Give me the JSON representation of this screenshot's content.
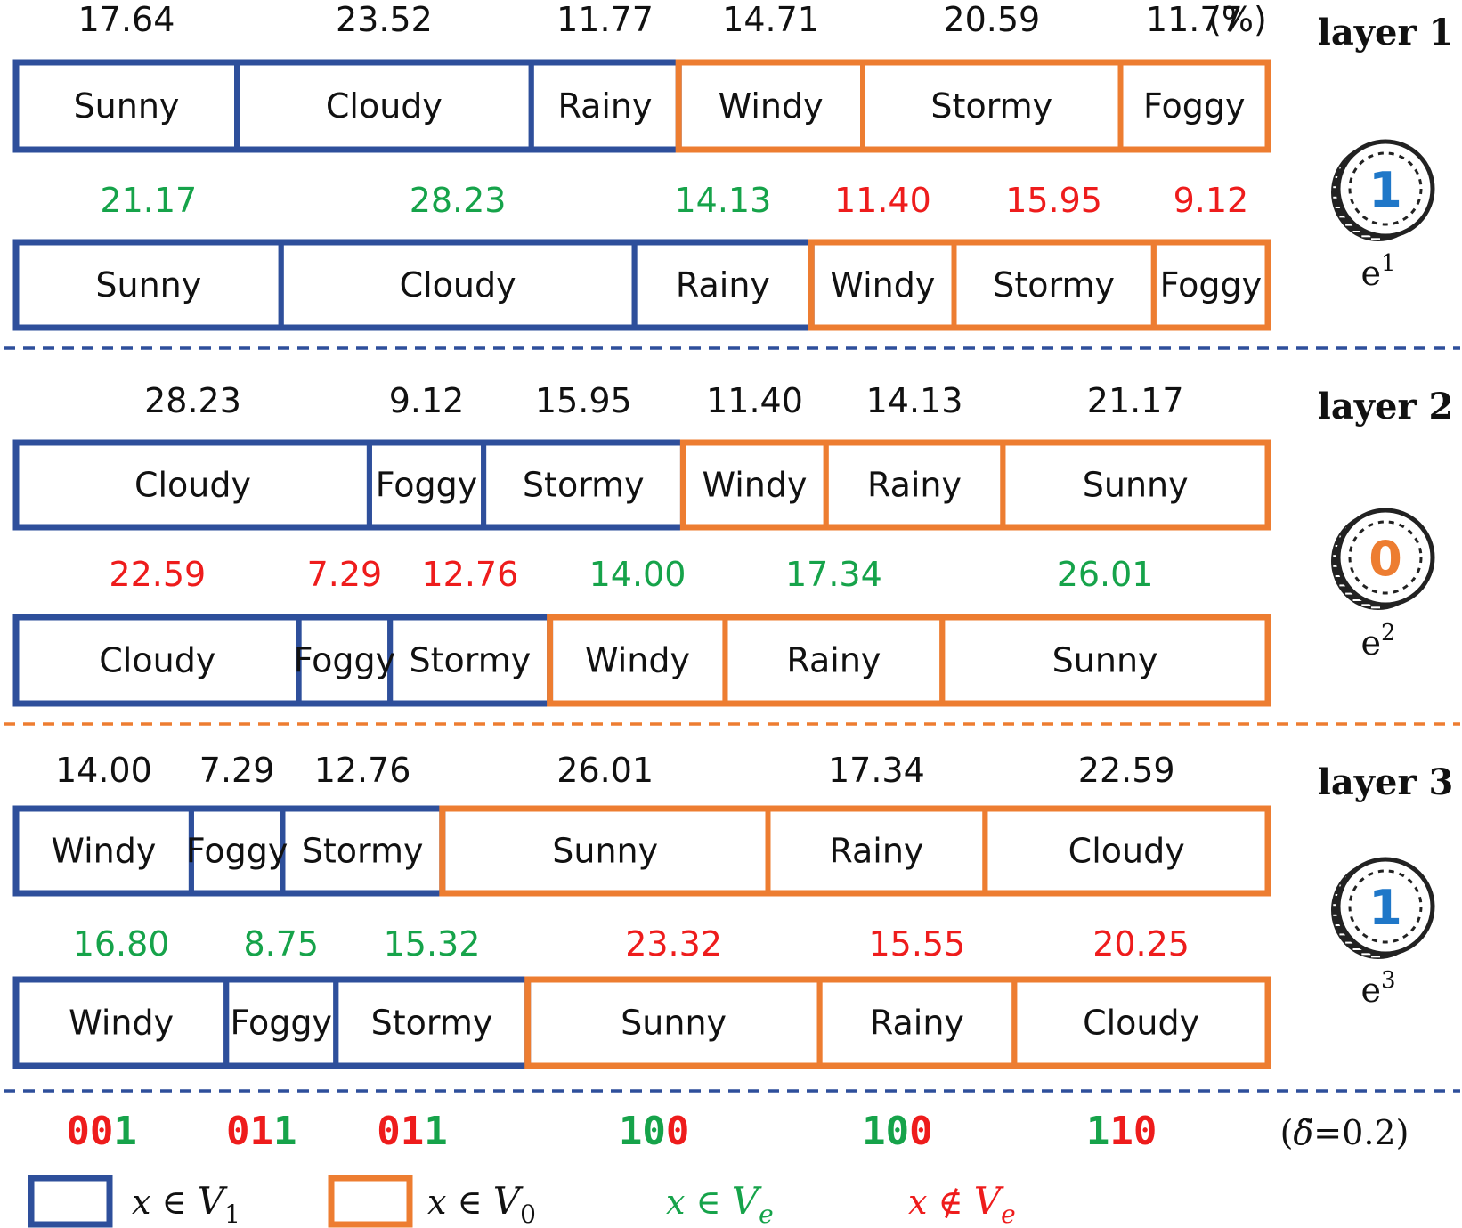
{
  "colors": {
    "blue": "#2e4f9b",
    "orange": "#ed7d31",
    "green": "#16a34a",
    "red": "#ee1c1c",
    "black": "#111111",
    "coin_blue": "#1f77c8",
    "coin_orange": "#ed7d31"
  },
  "unit_label": "(%)",
  "layers": [
    {
      "title": "layer 1",
      "coin": {
        "digit": "1",
        "label_base": "e",
        "label_sup": "1",
        "digit_color": "coin_blue"
      },
      "rows": [
        {
          "segments": [
            {
              "label": "Sunny",
              "value": "17.64",
              "group": "blue",
              "value_color": "black"
            },
            {
              "label": "Cloudy",
              "value": "23.52",
              "group": "blue",
              "value_color": "black"
            },
            {
              "label": "Rainy",
              "value": "11.77",
              "group": "blue",
              "value_color": "black"
            },
            {
              "label": "Windy",
              "value": "14.71",
              "group": "orange",
              "value_color": "black"
            },
            {
              "label": "Stormy",
              "value": "20.59",
              "group": "orange",
              "value_color": "black"
            },
            {
              "label": "Foggy",
              "value": "11.77",
              "group": "orange",
              "value_color": "black"
            }
          ]
        },
        {
          "segments": [
            {
              "label": "Sunny",
              "value": "21.17",
              "group": "blue",
              "value_color": "green"
            },
            {
              "label": "Cloudy",
              "value": "28.23",
              "group": "blue",
              "value_color": "green"
            },
            {
              "label": "Rainy",
              "value": "14.13",
              "group": "blue",
              "value_color": "green"
            },
            {
              "label": "Windy",
              "value": "11.40",
              "group": "orange",
              "value_color": "red"
            },
            {
              "label": "Stormy",
              "value": "15.95",
              "group": "orange",
              "value_color": "red"
            },
            {
              "label": "Foggy",
              "value": "9.12",
              "group": "orange",
              "value_color": "red"
            }
          ]
        }
      ]
    },
    {
      "title": "layer 2",
      "coin": {
        "digit": "0",
        "label_base": "e",
        "label_sup": "2",
        "digit_color": "coin_orange"
      },
      "rows": [
        {
          "segments": [
            {
              "label": "Cloudy",
              "value": "28.23",
              "group": "blue",
              "value_color": "black"
            },
            {
              "label": "Foggy",
              "value": "9.12",
              "group": "blue",
              "value_color": "black"
            },
            {
              "label": "Stormy",
              "value": "15.95",
              "group": "blue",
              "value_color": "black"
            },
            {
              "label": "Windy",
              "value": "11.40",
              "group": "orange",
              "value_color": "black"
            },
            {
              "label": "Rainy",
              "value": "14.13",
              "group": "orange",
              "value_color": "black"
            },
            {
              "label": "Sunny",
              "value": "21.17",
              "group": "orange",
              "value_color": "black"
            }
          ]
        },
        {
          "segments": [
            {
              "label": "Cloudy",
              "value": "22.59",
              "group": "blue",
              "value_color": "red"
            },
            {
              "label": "Foggy",
              "value": "7.29",
              "group": "blue",
              "value_color": "red"
            },
            {
              "label": "Stormy",
              "value": "12.76",
              "group": "blue",
              "value_color": "red"
            },
            {
              "label": "Windy",
              "value": "14.00",
              "group": "orange",
              "value_color": "green"
            },
            {
              "label": "Rainy",
              "value": "17.34",
              "group": "orange",
              "value_color": "green"
            },
            {
              "label": "Sunny",
              "value": "26.01",
              "group": "orange",
              "value_color": "green"
            }
          ]
        }
      ]
    },
    {
      "title": "layer 3",
      "coin": {
        "digit": "1",
        "label_base": "e",
        "label_sup": "3",
        "digit_color": "coin_blue"
      },
      "rows": [
        {
          "segments": [
            {
              "label": "Windy",
              "value": "14.00",
              "group": "blue",
              "value_color": "black"
            },
            {
              "label": "Foggy",
              "value": "7.29",
              "group": "blue",
              "value_color": "black"
            },
            {
              "label": "Stormy",
              "value": "12.76",
              "group": "blue",
              "value_color": "black"
            },
            {
              "label": "Sunny",
              "value": "26.01",
              "group": "orange",
              "value_color": "black"
            },
            {
              "label": "Rainy",
              "value": "17.34",
              "group": "orange",
              "value_color": "black"
            },
            {
              "label": "Cloudy",
              "value": "22.59",
              "group": "orange",
              "value_color": "black"
            }
          ]
        },
        {
          "segments": [
            {
              "label": "Windy",
              "value": "16.80",
              "group": "blue",
              "value_color": "green"
            },
            {
              "label": "Foggy",
              "value": "8.75",
              "group": "blue",
              "value_color": "green"
            },
            {
              "label": "Stormy",
              "value": "15.32",
              "group": "blue",
              "value_color": "green"
            },
            {
              "label": "Sunny",
              "value": "23.32",
              "group": "orange",
              "value_color": "red"
            },
            {
              "label": "Rainy",
              "value": "15.55",
              "group": "orange",
              "value_color": "red"
            },
            {
              "label": "Cloudy",
              "value": "20.25",
              "group": "orange",
              "value_color": "red"
            }
          ]
        }
      ]
    }
  ],
  "separator_colors": [
    "blue",
    "orange",
    "blue"
  ],
  "codes": [
    {
      "bits": [
        {
          "d": "0",
          "c": "red"
        },
        {
          "d": "0",
          "c": "red"
        },
        {
          "d": "1",
          "c": "green"
        }
      ]
    },
    {
      "bits": [
        {
          "d": "0",
          "c": "red"
        },
        {
          "d": "1",
          "c": "red"
        },
        {
          "d": "1",
          "c": "green"
        }
      ]
    },
    {
      "bits": [
        {
          "d": "0",
          "c": "red"
        },
        {
          "d": "1",
          "c": "red"
        },
        {
          "d": "1",
          "c": "green"
        }
      ]
    },
    {
      "bits": [
        {
          "d": "1",
          "c": "green"
        },
        {
          "d": "0",
          "c": "green"
        },
        {
          "d": "0",
          "c": "red"
        }
      ]
    },
    {
      "bits": [
        {
          "d": "1",
          "c": "green"
        },
        {
          "d": "0",
          "c": "green"
        },
        {
          "d": "0",
          "c": "red"
        }
      ]
    },
    {
      "bits": [
        {
          "d": "1",
          "c": "green"
        },
        {
          "d": "1",
          "c": "red"
        },
        {
          "d": "0",
          "c": "red"
        }
      ]
    }
  ],
  "delta_label": {
    "open": "(",
    "symbol": "δ̃",
    "rest": "=0.2)"
  },
  "legend": [
    {
      "kind": "box",
      "color": "blue",
      "text_x": "x",
      "text_rel": " ∈ ",
      "text_set": "V",
      "text_sub": "1",
      "sub_italic": false,
      "text_color": "black"
    },
    {
      "kind": "box",
      "color": "orange",
      "text_x": "x",
      "text_rel": " ∈ ",
      "text_set": "V",
      "text_sub": "0",
      "sub_italic": false,
      "text_color": "black"
    },
    {
      "kind": "text",
      "text_x": "x",
      "text_rel": " ∈ ",
      "text_set": "V",
      "text_sub": "e",
      "sub_italic": true,
      "text_color": "green"
    },
    {
      "kind": "text",
      "text_x": "x",
      "text_rel": " ∉ ",
      "text_set": "V",
      "text_sub": "e",
      "sub_italic": true,
      "text_color": "red"
    }
  ]
}
